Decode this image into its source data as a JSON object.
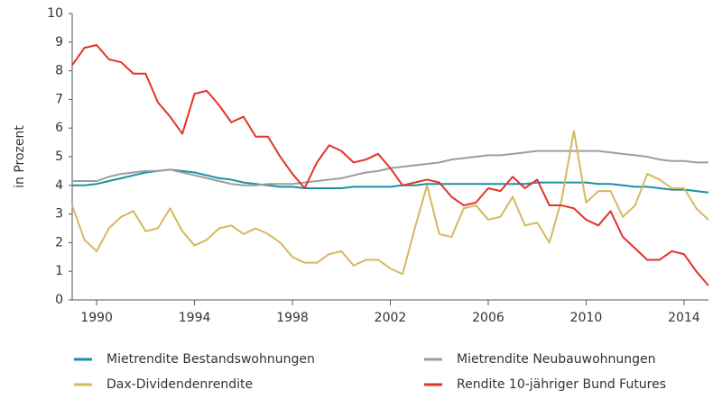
{
  "chart_data": {
    "type": "line",
    "y_label": "in Prozent",
    "x": [
      1989,
      1989.5,
      1990,
      1990.5,
      1991,
      1991.5,
      1992,
      1992.5,
      1993,
      1993.5,
      1994,
      1994.5,
      1995,
      1995.5,
      1996,
      1996.5,
      1997,
      1997.5,
      1998,
      1998.5,
      1999,
      1999.5,
      2000,
      2000.5,
      2001,
      2001.5,
      2002,
      2002.5,
      2003,
      2003.5,
      2004,
      2004.5,
      2005,
      2005.5,
      2006,
      2006.5,
      2007,
      2007.5,
      2008,
      2008.5,
      2009,
      2009.5,
      2010,
      2010.5,
      2011,
      2011.5,
      2012,
      2012.5,
      2013,
      2013.5,
      2014,
      2014.5,
      2015
    ],
    "series": [
      {
        "name": "Mietrendite Bestandswohnungen",
        "color": "#1b8fa5",
        "values": [
          4.0,
          4.0,
          4.05,
          4.15,
          4.25,
          4.35,
          4.45,
          4.5,
          4.55,
          4.5,
          4.45,
          4.35,
          4.25,
          4.2,
          4.1,
          4.05,
          4.0,
          3.95,
          3.95,
          3.9,
          3.9,
          3.9,
          3.9,
          3.95,
          3.95,
          3.95,
          3.95,
          4.0,
          4.0,
          4.05,
          4.05,
          4.05,
          4.05,
          4.05,
          4.05,
          4.05,
          4.05,
          4.05,
          4.1,
          4.1,
          4.1,
          4.1,
          4.1,
          4.05,
          4.05,
          4.0,
          3.95,
          3.95,
          3.9,
          3.85,
          3.85,
          3.8,
          3.75
        ]
      },
      {
        "name": "Mietrendite Neubauwohnungen",
        "color": "#9d9d9d",
        "values": [
          4.15,
          4.15,
          4.15,
          4.3,
          4.4,
          4.45,
          4.5,
          4.5,
          4.55,
          4.45,
          4.35,
          4.25,
          4.15,
          4.05,
          4.0,
          4.0,
          4.05,
          4.05,
          4.05,
          4.1,
          4.15,
          4.2,
          4.25,
          4.35,
          4.45,
          4.5,
          4.6,
          4.65,
          4.7,
          4.75,
          4.8,
          4.9,
          4.95,
          5.0,
          5.05,
          5.05,
          5.1,
          5.15,
          5.2,
          5.2,
          5.2,
          5.2,
          5.2,
          5.2,
          5.15,
          5.1,
          5.05,
          5.0,
          4.9,
          4.85,
          4.85,
          4.8,
          4.8
        ]
      },
      {
        "name": "Dax-Dividendenrendite",
        "color": "#d7b85e",
        "values": [
          3.3,
          2.1,
          1.7,
          2.5,
          2.9,
          3.1,
          2.4,
          2.5,
          3.2,
          2.4,
          1.9,
          2.1,
          2.5,
          2.6,
          2.3,
          2.5,
          2.3,
          2.0,
          1.5,
          1.3,
          1.3,
          1.6,
          1.7,
          1.2,
          1.4,
          1.4,
          1.1,
          0.9,
          2.5,
          4.0,
          2.3,
          2.2,
          3.2,
          3.3,
          2.8,
          2.9,
          3.6,
          2.6,
          2.7,
          2.0,
          3.5,
          5.9,
          3.4,
          3.8,
          3.8,
          2.9,
          3.3,
          4.4,
          4.2,
          3.9,
          3.9,
          3.2,
          2.8
        ]
      },
      {
        "name": "Rendite 10-jähriger Bund Futures",
        "color": "#e2332b",
        "values": [
          8.2,
          8.8,
          8.9,
          8.4,
          8.3,
          7.9,
          7.9,
          6.9,
          6.4,
          5.8,
          7.2,
          7.3,
          6.8,
          6.2,
          6.4,
          5.7,
          5.7,
          5.0,
          4.4,
          3.9,
          4.8,
          5.4,
          5.2,
          4.8,
          4.9,
          5.1,
          4.6,
          4.0,
          4.1,
          4.2,
          4.1,
          3.6,
          3.3,
          3.4,
          3.9,
          3.8,
          4.3,
          3.9,
          4.2,
          3.3,
          3.3,
          3.2,
          2.8,
          2.6,
          3.1,
          2.2,
          1.8,
          1.4,
          1.4,
          1.7,
          1.6,
          1.0,
          0.5
        ]
      }
    ],
    "xlim": [
      1989,
      2015
    ],
    "xticks": [
      1990,
      1994,
      1998,
      2002,
      2006,
      2010,
      2014
    ],
    "ylim": [
      0,
      10
    ],
    "yticks": [
      0,
      1,
      2,
      3,
      4,
      5,
      6,
      7,
      8,
      9,
      10
    ],
    "grid": false,
    "legend": "bottom"
  }
}
